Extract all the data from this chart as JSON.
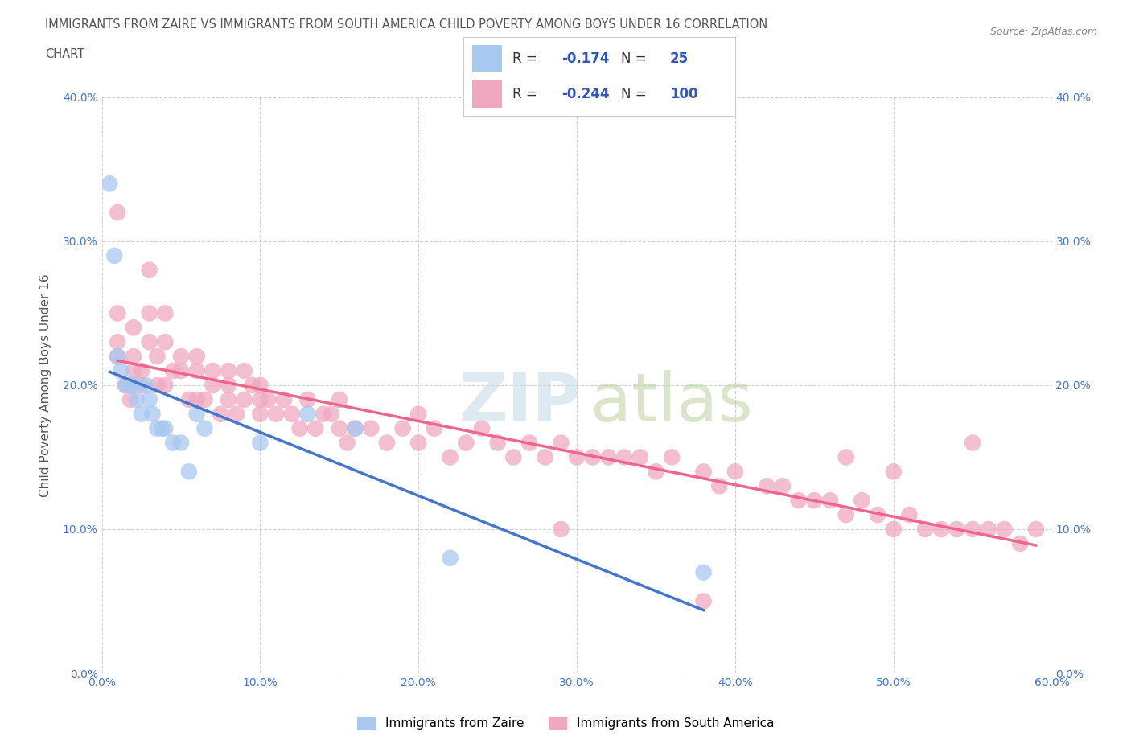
{
  "title_line1": "IMMIGRANTS FROM ZAIRE VS IMMIGRANTS FROM SOUTH AMERICA CHILD POVERTY AMONG BOYS UNDER 16 CORRELATION",
  "title_line2": "CHART",
  "source": "Source: ZipAtlas.com",
  "xlabel_zaire": "Immigrants from Zaire",
  "xlabel_sa": "Immigrants from South America",
  "ylabel": "Child Poverty Among Boys Under 16",
  "xlim": [
    0,
    0.6
  ],
  "ylim": [
    0,
    0.4
  ],
  "xticks": [
    0.0,
    0.1,
    0.2,
    0.3,
    0.4,
    0.5,
    0.6
  ],
  "yticks": [
    0.0,
    0.1,
    0.2,
    0.3,
    0.4
  ],
  "zaire_R": -0.174,
  "zaire_N": 25,
  "sa_R": -0.244,
  "sa_N": 100,
  "zaire_color": "#a8c8f0",
  "sa_color": "#f0a8c0",
  "zaire_line_color": "#4477cc",
  "sa_line_color": "#ee6688",
  "watermark_zip_color": "#c8dde8",
  "watermark_atlas_color": "#b8cc99",
  "background_color": "#ffffff",
  "grid_color": "#cccccc",
  "title_color": "#555555",
  "tick_color": "#4477cc",
  "legend_text_color": "#333333",
  "legend_val_color": "#3355bb",
  "source_color": "#888888",
  "zaire_x": [
    0.005,
    0.008,
    0.01,
    0.012,
    0.015,
    0.018,
    0.02,
    0.022,
    0.025,
    0.028,
    0.03,
    0.032,
    0.035,
    0.038,
    0.04,
    0.045,
    0.05,
    0.055,
    0.06,
    0.065,
    0.1,
    0.13,
    0.16,
    0.22,
    0.38
  ],
  "zaire_y": [
    0.34,
    0.29,
    0.22,
    0.21,
    0.2,
    0.2,
    0.2,
    0.19,
    0.18,
    0.2,
    0.19,
    0.18,
    0.17,
    0.17,
    0.17,
    0.16,
    0.16,
    0.14,
    0.18,
    0.17,
    0.16,
    0.18,
    0.17,
    0.08,
    0.07
  ],
  "sa_x": [
    0.01,
    0.01,
    0.01,
    0.015,
    0.018,
    0.02,
    0.02,
    0.025,
    0.025,
    0.03,
    0.03,
    0.03,
    0.035,
    0.035,
    0.04,
    0.04,
    0.045,
    0.05,
    0.05,
    0.055,
    0.06,
    0.06,
    0.065,
    0.07,
    0.07,
    0.075,
    0.08,
    0.08,
    0.085,
    0.09,
    0.09,
    0.095,
    0.1,
    0.1,
    0.105,
    0.11,
    0.115,
    0.12,
    0.125,
    0.13,
    0.135,
    0.14,
    0.145,
    0.15,
    0.155,
    0.16,
    0.17,
    0.18,
    0.19,
    0.2,
    0.21,
    0.22,
    0.23,
    0.24,
    0.25,
    0.26,
    0.27,
    0.28,
    0.29,
    0.3,
    0.31,
    0.32,
    0.33,
    0.34,
    0.35,
    0.36,
    0.38,
    0.39,
    0.4,
    0.42,
    0.43,
    0.44,
    0.45,
    0.46,
    0.47,
    0.47,
    0.48,
    0.49,
    0.5,
    0.5,
    0.51,
    0.52,
    0.53,
    0.54,
    0.55,
    0.56,
    0.57,
    0.58,
    0.59,
    0.55,
    0.38,
    0.29,
    0.2,
    0.15,
    0.1,
    0.08,
    0.06,
    0.04,
    0.02,
    0.01
  ],
  "sa_y": [
    0.25,
    0.23,
    0.22,
    0.2,
    0.19,
    0.24,
    0.22,
    0.21,
    0.2,
    0.28,
    0.25,
    0.23,
    0.22,
    0.2,
    0.25,
    0.23,
    0.21,
    0.22,
    0.21,
    0.19,
    0.22,
    0.21,
    0.19,
    0.21,
    0.2,
    0.18,
    0.2,
    0.19,
    0.18,
    0.21,
    0.19,
    0.2,
    0.19,
    0.18,
    0.19,
    0.18,
    0.19,
    0.18,
    0.17,
    0.19,
    0.17,
    0.18,
    0.18,
    0.17,
    0.16,
    0.17,
    0.17,
    0.16,
    0.17,
    0.16,
    0.17,
    0.15,
    0.16,
    0.17,
    0.16,
    0.15,
    0.16,
    0.15,
    0.16,
    0.15,
    0.15,
    0.15,
    0.15,
    0.15,
    0.14,
    0.15,
    0.14,
    0.13,
    0.14,
    0.13,
    0.13,
    0.12,
    0.12,
    0.12,
    0.15,
    0.11,
    0.12,
    0.11,
    0.14,
    0.1,
    0.11,
    0.1,
    0.1,
    0.1,
    0.1,
    0.1,
    0.1,
    0.09,
    0.1,
    0.16,
    0.05,
    0.1,
    0.18,
    0.19,
    0.2,
    0.21,
    0.19,
    0.2,
    0.21,
    0.32
  ]
}
